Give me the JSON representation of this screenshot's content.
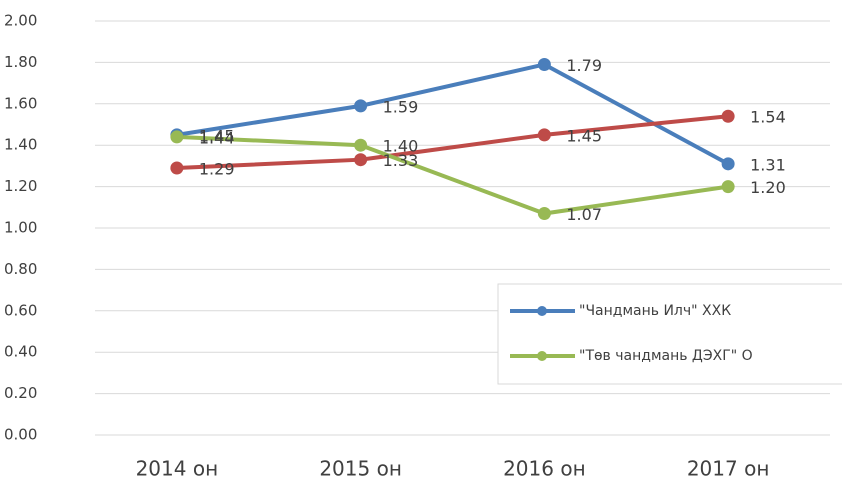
{
  "chart_data": {
    "type": "line",
    "categories": [
      "2014 он",
      "2015 он",
      "2016 он",
      "2017 он"
    ],
    "series": [
      {
        "name": "\"Чандмань Илч\" ХХК",
        "color": "#4a7ebb",
        "values": [
          1.45,
          1.59,
          1.79,
          1.31
        ],
        "value_labels": [
          "1.45",
          "1.59",
          "1.79",
          "1.31"
        ]
      },
      {
        "color": "#be4b48",
        "values": [
          1.29,
          1.33,
          1.45,
          1.54
        ],
        "value_labels": [
          "1.29",
          "1.33",
          "1.45",
          "1.54"
        ]
      },
      {
        "name": "\"Төв чандмань ДЭХГ\" О",
        "color": "#98b954",
        "values": [
          1.44,
          1.4,
          1.07,
          1.2
        ],
        "value_labels": [
          "1.44",
          "1.40",
          "1.07",
          "1.20"
        ]
      }
    ],
    "ylim": [
      0,
      2
    ],
    "yticks": [
      {
        "value": 0,
        "label": "0.00"
      },
      {
        "value": 0.2,
        "label": "0.20"
      },
      {
        "value": 0.4,
        "label": "0.40"
      },
      {
        "value": 0.6,
        "label": "0.60"
      },
      {
        "value": 0.8,
        "label": "0.80"
      },
      {
        "value": 1,
        "label": "1.00"
      },
      {
        "value": 1.2,
        "label": "1.20"
      },
      {
        "value": 1.4,
        "label": "1.40"
      },
      {
        "value": 1.6,
        "label": "1.60"
      },
      {
        "value": 1.8,
        "label": "1.80"
      },
      {
        "value": 2,
        "label": "2.00"
      }
    ],
    "grid": true,
    "legend": "lower right"
  }
}
